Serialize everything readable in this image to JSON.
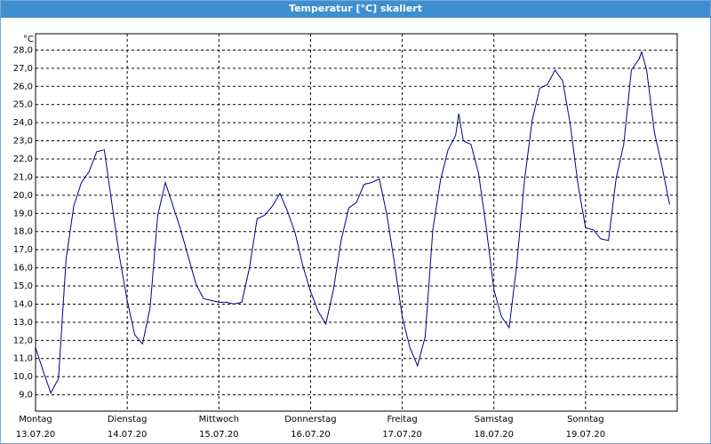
{
  "chart_data": {
    "type": "line",
    "title": "Temperatur [°C] skaliert",
    "y_unit": "°C",
    "x": [
      0,
      2,
      4,
      6,
      8,
      10,
      12,
      14,
      16,
      18,
      20,
      22,
      24,
      26,
      28,
      30,
      32,
      34,
      36,
      38,
      40,
      42,
      44,
      46,
      48,
      50,
      52,
      54,
      56,
      58,
      60,
      62,
      64,
      66,
      68,
      70,
      72,
      74,
      76,
      78,
      80,
      82,
      84,
      86,
      88,
      90,
      92,
      94,
      96,
      98,
      100,
      102,
      104,
      106,
      108,
      110,
      110.8,
      112,
      114,
      116,
      118,
      120,
      122,
      124,
      126,
      128,
      130,
      132,
      134,
      136,
      138,
      140,
      142,
      144,
      146,
      148,
      150,
      152,
      154,
      156,
      158,
      158.7,
      160,
      162,
      164,
      166
    ],
    "series": [
      {
        "name": "Temperatur",
        "color": "#00008b",
        "values": [
          11.6,
          10.3,
          9.1,
          9.9,
          16.5,
          19.4,
          20.7,
          21.3,
          22.4,
          22.5,
          19.5,
          16.6,
          14.2,
          12.3,
          11.8,
          13.8,
          18.9,
          20.7,
          19.4,
          18.1,
          16.6,
          15.1,
          14.3,
          14.2,
          14.1,
          14.1,
          14.0,
          14.1,
          16.0,
          18.7,
          18.9,
          19.4,
          20.1,
          19.1,
          17.9,
          16.1,
          14.7,
          13.6,
          12.9,
          14.8,
          17.5,
          19.3,
          19.6,
          20.6,
          20.7,
          20.9,
          18.9,
          16.2,
          13.3,
          11.6,
          10.6,
          12.2,
          18.1,
          20.8,
          22.5,
          23.3,
          24.5,
          23.0,
          22.8,
          21.2,
          18.2,
          14.8,
          13.3,
          12.7,
          16.2,
          20.8,
          24.1,
          25.9,
          26.1,
          26.9,
          26.3,
          23.9,
          20.6,
          18.2,
          18.1,
          17.6,
          17.5,
          20.9,
          22.8,
          26.9,
          27.5,
          27.9,
          26.9,
          23.5,
          21.6,
          19.5
        ]
      }
    ],
    "xlim": [
      0,
      168
    ],
    "xticks": [
      {
        "value": 0,
        "label": "Montag"
      },
      {
        "value": 24,
        "label": "Dienstag"
      },
      {
        "value": 48,
        "label": "Mittwoch"
      },
      {
        "value": 72,
        "label": "Donnerstag"
      },
      {
        "value": 96,
        "label": "Freitag"
      },
      {
        "value": 120,
        "label": "Samstag"
      },
      {
        "value": 144,
        "label": "Sonntag"
      }
    ],
    "xtick_dates": [
      "13.07.20",
      "14.07.20",
      "15.07.20",
      "16.07.20",
      "17.07.20",
      "18.07.20",
      "19.07.20"
    ],
    "ylim": [
      8.1,
      28.9
    ],
    "yticks": [
      {
        "value": 9,
        "label": "9,0"
      },
      {
        "value": 10,
        "label": "10,0"
      },
      {
        "value": 11,
        "label": "11,0"
      },
      {
        "value": 12,
        "label": "12,0"
      },
      {
        "value": 13,
        "label": "13,0"
      },
      {
        "value": 14,
        "label": "14,0"
      },
      {
        "value": 15,
        "label": "15,0"
      },
      {
        "value": 16,
        "label": "16,0"
      },
      {
        "value": 17,
        "label": "17,0"
      },
      {
        "value": 18,
        "label": "18,0"
      },
      {
        "value": 19,
        "label": "19,0"
      },
      {
        "value": 20,
        "label": "20,0"
      },
      {
        "value": 21,
        "label": "21,0"
      },
      {
        "value": 22,
        "label": "22,0"
      },
      {
        "value": 23,
        "label": "23,0"
      },
      {
        "value": 24,
        "label": "24,0"
      },
      {
        "value": 25,
        "label": "25,0"
      },
      {
        "value": 26,
        "label": "26,0"
      },
      {
        "value": 27,
        "label": "27,0"
      },
      {
        "value": 28,
        "label": "28,0"
      }
    ],
    "grid": true
  }
}
